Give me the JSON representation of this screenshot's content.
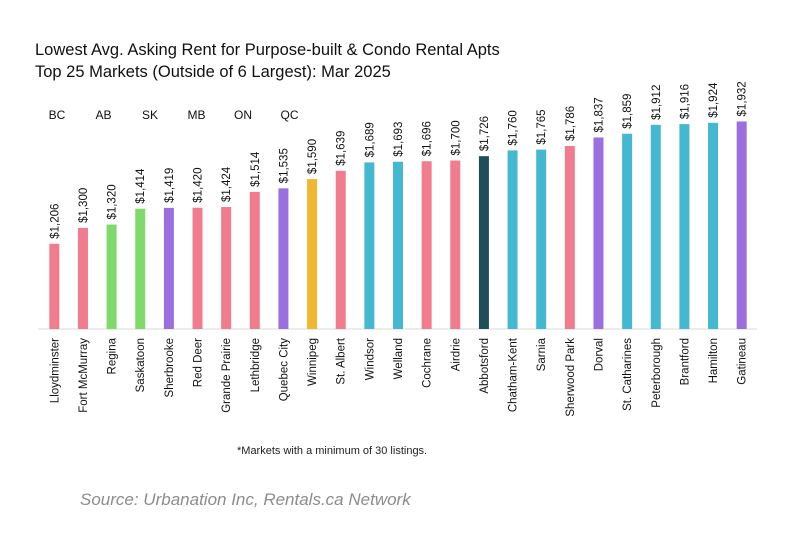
{
  "title_line1": "Lowest Avg. Asking Rent for Purpose-built & Condo Rental Apts",
  "title_line2": "Top 25 Markets (Outside of 6 Largest): Mar 2025",
  "footnote": "*Markets with a minimum of 30 listings.",
  "source": "Source: Urbanation Inc, Rentals.ca Network",
  "legend": [
    {
      "label": "BC",
      "color": "#f07c8d"
    },
    {
      "label": "AB",
      "color": "#f07c8d"
    },
    {
      "label": "SK",
      "color": "#7fd96b"
    },
    {
      "label": "MB",
      "color": "#f2b731"
    },
    {
      "label": "ON",
      "color": "#43b8d0"
    },
    {
      "label": "QC",
      "color": "#9b6fe0"
    }
  ],
  "chart_data": {
    "type": "bar",
    "categories": [
      "Lloydminster",
      "Fort McMurray",
      "Regina",
      "Saskatoon",
      "Sherbrooke",
      "Red Deer",
      "Grande Prairie",
      "Lethbridge",
      "Quebec City",
      "Winnipeg",
      "St. Albert",
      "Windsor",
      "Welland",
      "Cochrane",
      "Airdrie",
      "Abbotsford",
      "Chatham-Kent",
      "Sarnia",
      "Sherwood Park",
      "Dorval",
      "St. Catharines",
      "Peterborough",
      "Brantford",
      "Hamilton",
      "Gatineau"
    ],
    "values": [
      1206,
      1300,
      1320,
      1414,
      1419,
      1420,
      1424,
      1514,
      1535,
      1590,
      1639,
      1689,
      1693,
      1696,
      1700,
      1726,
      1760,
      1765,
      1786,
      1837,
      1859,
      1912,
      1916,
      1924,
      1932
    ],
    "labels": [
      "$1,206",
      "$1,300",
      "$1,320",
      "$1,414",
      "$1,419",
      "$1,420",
      "$1,424",
      "$1,514",
      "$1,535",
      "$1,590",
      "$1,639",
      "$1,689",
      "$1,693",
      "$1,696",
      "$1,700",
      "$1,726",
      "$1,760",
      "$1,765",
      "$1,786",
      "$1,837",
      "$1,859",
      "$1,912",
      "$1,916",
      "$1,924",
      "$1,932"
    ],
    "colors": [
      "#f07c8d",
      "#f07c8d",
      "#7fd96b",
      "#7fd96b",
      "#9b6fe0",
      "#f07c8d",
      "#f07c8d",
      "#f07c8d",
      "#9b6fe0",
      "#f2b731",
      "#f07c8d",
      "#43b8d0",
      "#43b8d0",
      "#f07c8d",
      "#f07c8d",
      "#1f4e5a",
      "#43b8d0",
      "#43b8d0",
      "#f07c8d",
      "#9b6fe0",
      "#43b8d0",
      "#43b8d0",
      "#43b8d0",
      "#43b8d0",
      "#9b6fe0"
    ],
    "ylim": [
      700,
      2000
    ],
    "grid": false,
    "legend_position": "top-left"
  }
}
